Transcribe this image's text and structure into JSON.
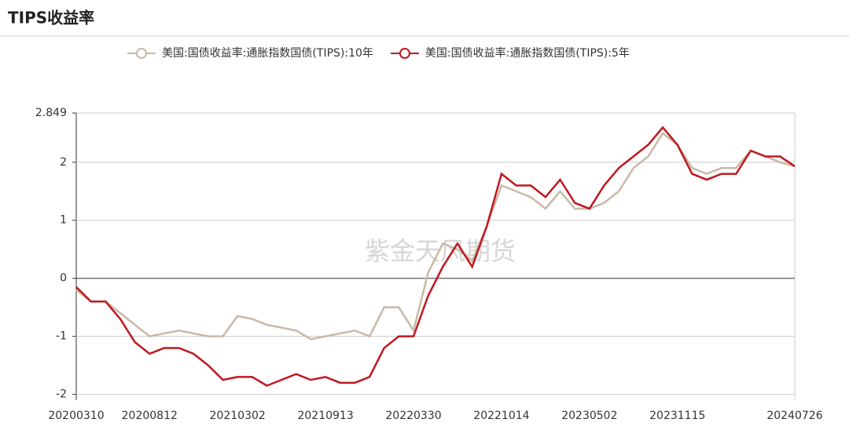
{
  "chart_data": {
    "type": "line",
    "title": "TIPS收益率",
    "watermark": "紫金天风期货",
    "categories": [
      "20200310",
      null,
      null,
      null,
      null,
      "20200812",
      null,
      null,
      null,
      null,
      null,
      "20210302",
      null,
      null,
      null,
      null,
      null,
      "20210913",
      null,
      null,
      null,
      null,
      null,
      "20220330",
      null,
      null,
      null,
      null,
      null,
      "20221014",
      null,
      null,
      null,
      null,
      null,
      "20230502",
      null,
      null,
      null,
      null,
      null,
      "20231115",
      null,
      null,
      null,
      null,
      null,
      null,
      null,
      "20240726"
    ],
    "series": [
      {
        "name": "美国:国债收益率:通胀指数国债(TIPS):10年",
        "color": "#c8b9a6",
        "values": [
          -0.2,
          -0.4,
          -0.4,
          -0.6,
          -0.8,
          -1.0,
          -0.95,
          -0.9,
          -0.95,
          -1.0,
          -1.0,
          -0.65,
          -0.7,
          -0.8,
          -0.85,
          -0.9,
          -1.05,
          -1.0,
          -0.95,
          -0.9,
          -1.0,
          -0.5,
          -0.5,
          -0.9,
          0.1,
          0.6,
          0.5,
          0.3,
          0.9,
          1.6,
          1.5,
          1.4,
          1.2,
          1.5,
          1.2,
          1.2,
          1.3,
          1.5,
          1.9,
          2.1,
          2.5,
          2.3,
          1.9,
          1.8,
          1.9,
          1.9,
          2.2,
          2.1,
          2.0,
          1.93
        ]
      },
      {
        "name": "美国:国债收益率:通胀指数国债(TIPS):5年",
        "color": "#c0171f",
        "values": [
          -0.15,
          -0.4,
          -0.4,
          -0.7,
          -1.1,
          -1.3,
          -1.2,
          -1.2,
          -1.3,
          -1.5,
          -1.75,
          -1.7,
          -1.7,
          -1.85,
          -1.75,
          -1.65,
          -1.75,
          -1.7,
          -1.8,
          -1.8,
          -1.7,
          -1.2,
          -1.0,
          -1.0,
          -0.3,
          0.2,
          0.6,
          0.2,
          0.9,
          1.8,
          1.6,
          1.6,
          1.4,
          1.7,
          1.3,
          1.2,
          1.6,
          1.9,
          2.1,
          2.3,
          2.6,
          2.3,
          1.8,
          1.7,
          1.8,
          1.8,
          2.2,
          2.1,
          2.1,
          1.93
        ]
      }
    ],
    "ylim": [
      -2.1,
      2.849
    ],
    "yticks": [
      -2,
      -1,
      0,
      1,
      2,
      2.849
    ],
    "grid": true
  }
}
